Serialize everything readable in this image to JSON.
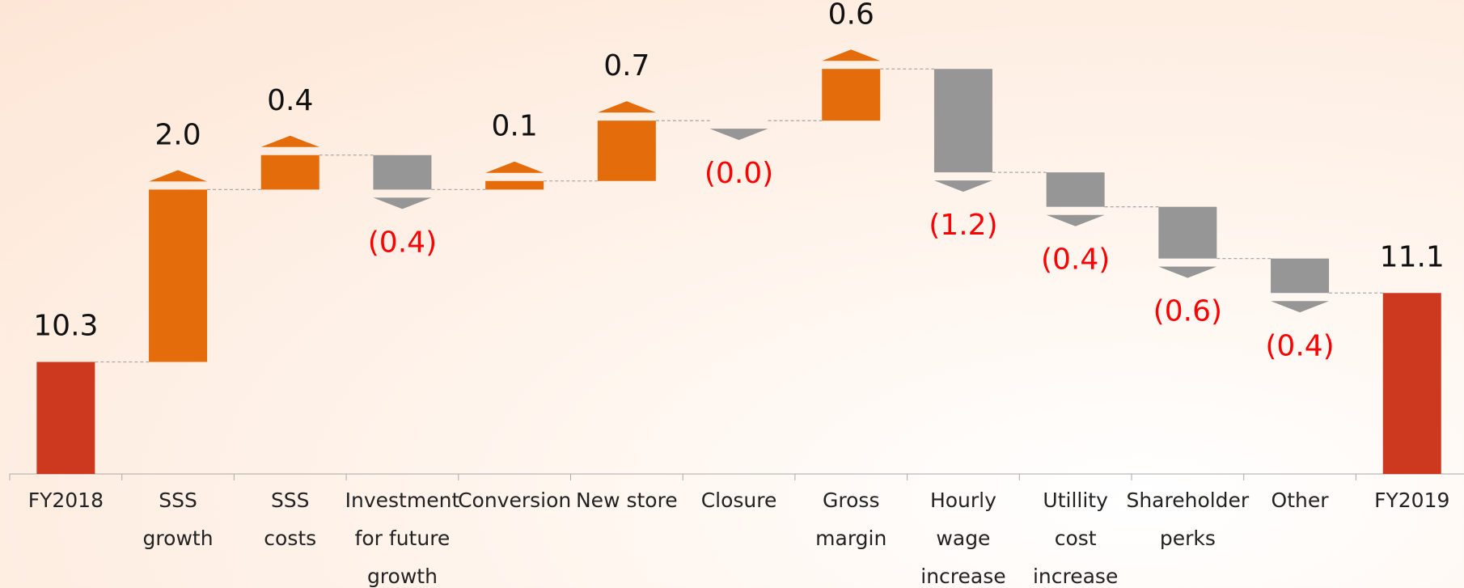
{
  "chart_data": {
    "type": "waterfall",
    "categories": [
      "FY2018",
      "SSS\ngrowth",
      "SSS\ncosts",
      "Investment\nfor future\ngrowth",
      "Conversion",
      "New store",
      "Closure",
      "Gross\nmargin",
      "Hourly\nwage\nincrease",
      "Utillity\ncost\nincrease",
      "Shareholder\nperks",
      "Other",
      "FY2019"
    ],
    "measure": [
      "total",
      "relative",
      "relative",
      "relative",
      "relative",
      "relative",
      "relative",
      "relative",
      "relative",
      "relative",
      "relative",
      "relative",
      "total"
    ],
    "values": [
      10.3,
      2.0,
      0.4,
      -0.4,
      0.1,
      0.7,
      -0.0,
      0.6,
      -1.2,
      -0.4,
      -0.6,
      -0.4,
      11.1
    ],
    "value_labels": [
      "10.3",
      "2.0",
      "0.4",
      "(0.4)",
      "0.1",
      "0.7",
      "(0.0)",
      "0.6",
      "(1.2)",
      "(0.4)",
      "(0.6)",
      "(0.4)",
      "11.1"
    ],
    "total_color": "#cc391e",
    "increase_color": "#e46c0a",
    "decrease_color": "#969696",
    "label_color": "#111111",
    "negative_label_color": "#ff0000",
    "ylim": [
      9.0,
      14.5
    ]
  }
}
